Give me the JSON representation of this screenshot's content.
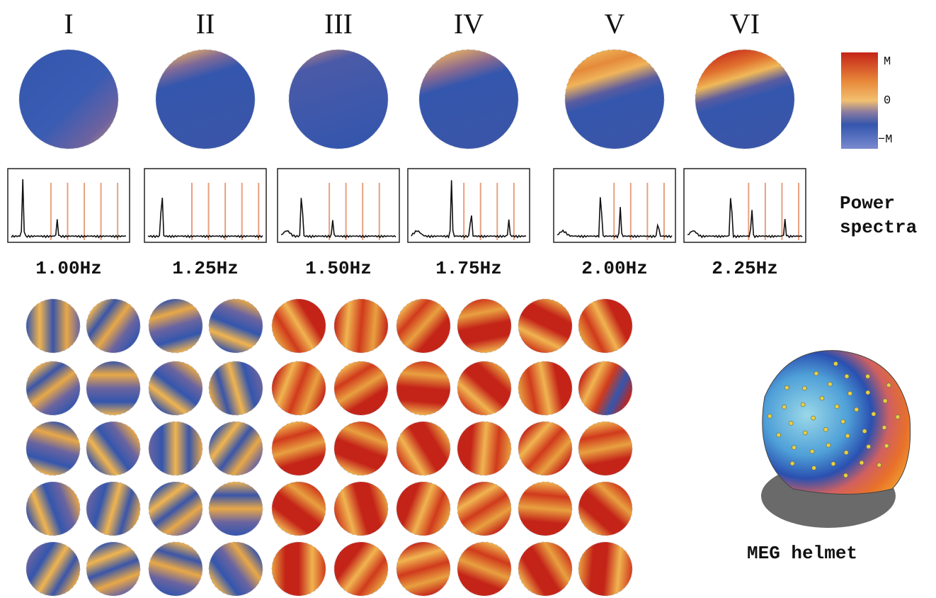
{
  "columns": [
    {
      "label": "I",
      "frequency": "1.00Hz"
    },
    {
      "label": "II",
      "frequency": "1.25Hz"
    },
    {
      "label": "III",
      "frequency": "1.50Hz"
    },
    {
      "label": "IV",
      "frequency": "1.75Hz"
    },
    {
      "label": "V",
      "frequency": "2.00Hz"
    },
    {
      "label": "VI",
      "frequency": "2.25Hz"
    }
  ],
  "colorbar": {
    "max": "M",
    "zero": "0",
    "min": "−M"
  },
  "spectra_label": "Power spectra",
  "helmet_label": "MEG helmet"
}
